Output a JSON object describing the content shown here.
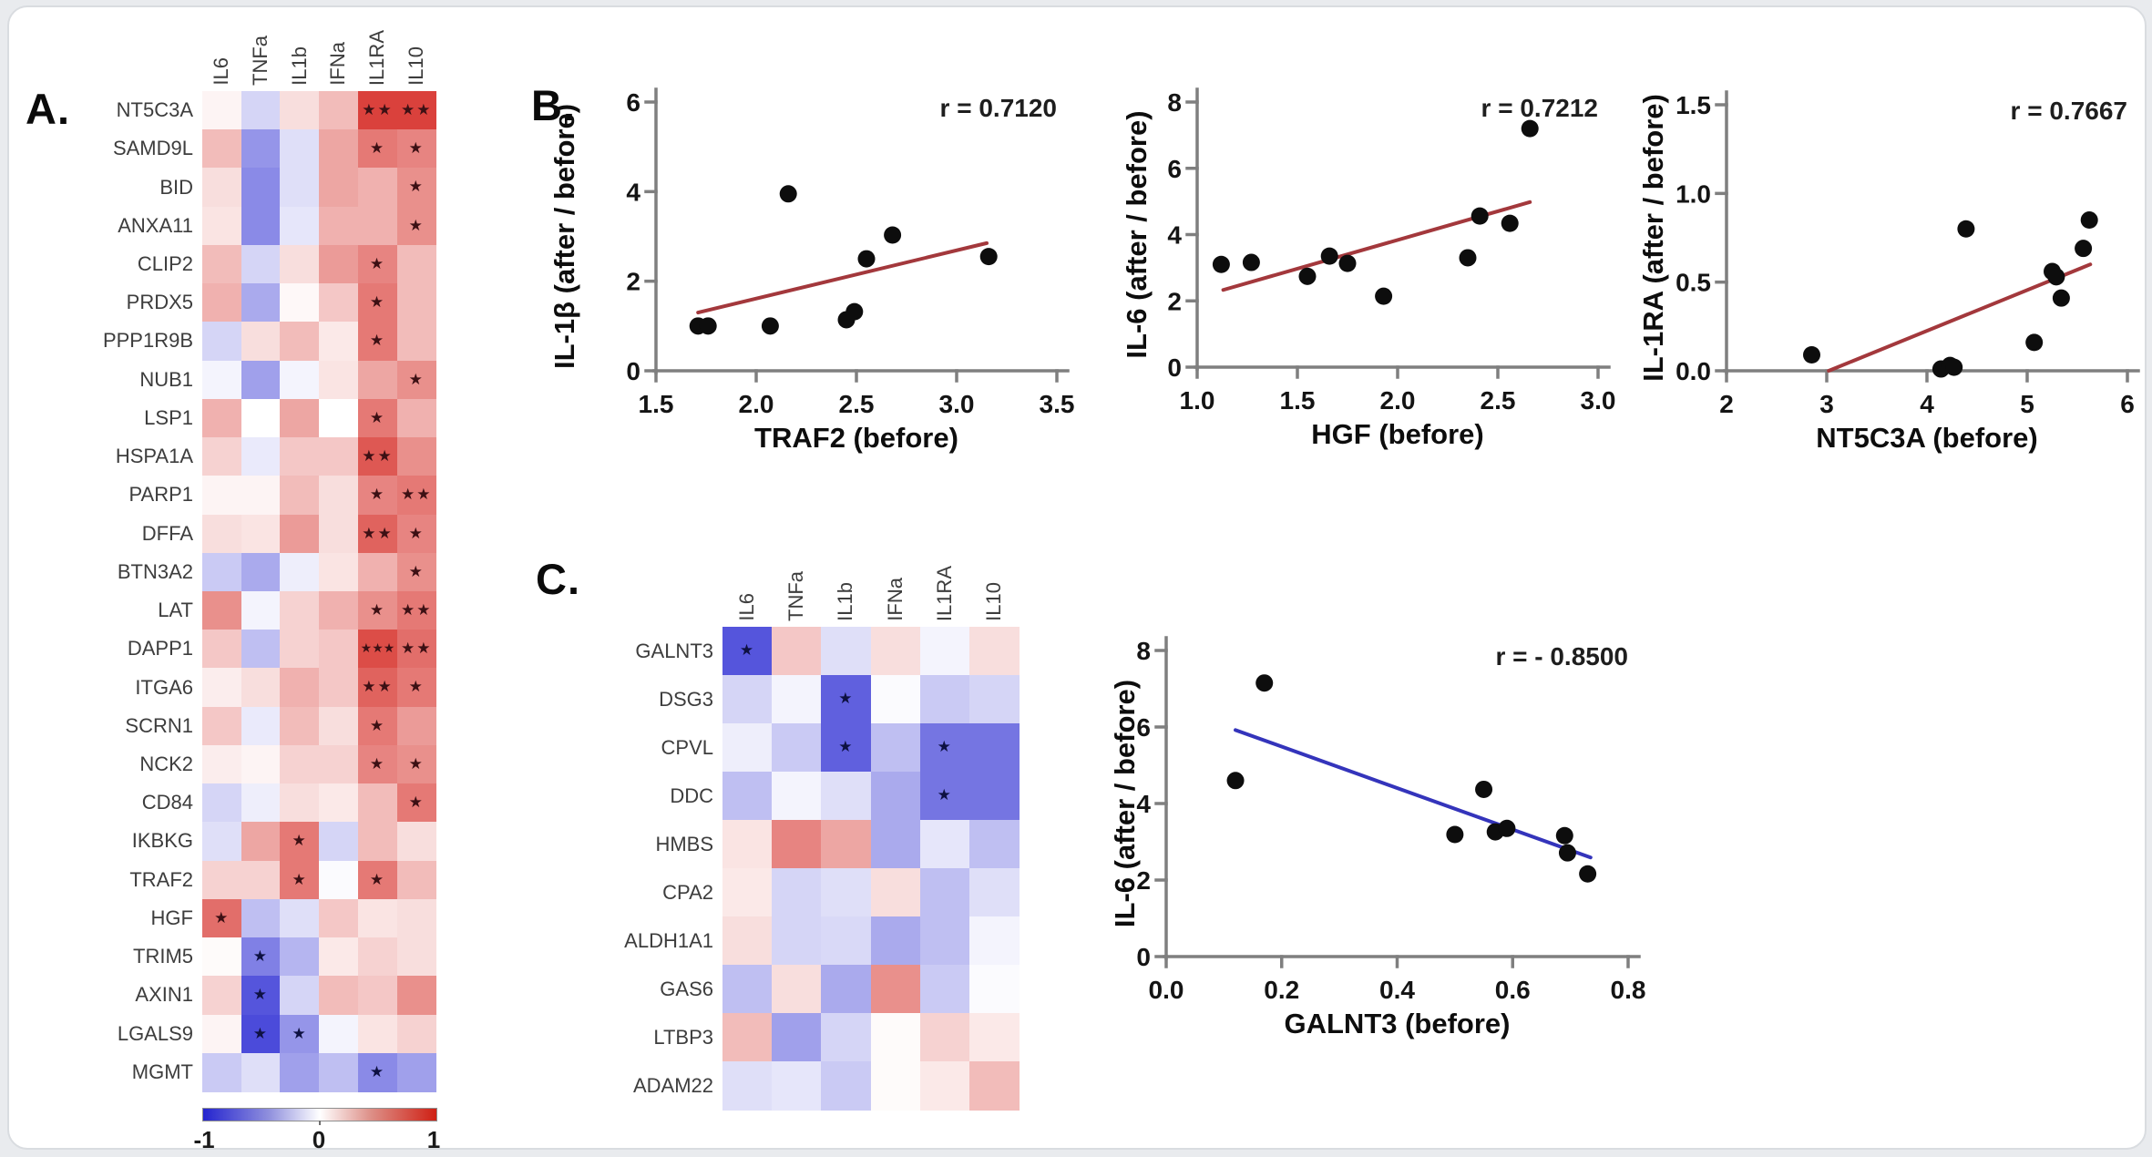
{
  "panel_labels": {
    "a": "A.",
    "b": "B.",
    "c": "C."
  },
  "colors": {
    "heatmap_negative": "#2b2bd3",
    "heatmap_zero": "#ffffff",
    "heatmap_positive": "#d32019",
    "point_color": "#0d0d0d",
    "trend_red": "#a3383c",
    "trend_blue": "#3434bb",
    "axis_gray": "#7f7f7f"
  },
  "chart_data": [
    {
      "id": "heatmap-a",
      "type": "heatmap",
      "legend_position": "bottom",
      "colorbar_ticks": [
        "-1",
        "0",
        "1"
      ],
      "value_range": [
        -1,
        1
      ],
      "columns": [
        "IL6",
        "TNFa",
        "IL1b",
        "IFNa",
        "IL1RA",
        "IL10"
      ],
      "rows": [
        "NT5C3A",
        "SAMD9L",
        "BID",
        "ANXA11",
        "CLIP2",
        "PRDX5",
        "PPP1R9B",
        "NUB1",
        "LSP1",
        "HSPA1A",
        "PARP1",
        "DFFA",
        "BTN3A2",
        "LAT",
        "DAPP1",
        "ITGA6",
        "SCRN1",
        "NCK2",
        "CD84",
        "IKBKG",
        "TRAF2",
        "HGF",
        "TRIM5",
        "AXIN1",
        "LGALS9",
        "MGMT"
      ],
      "values": [
        [
          0.05,
          -0.2,
          0.15,
          0.3,
          0.85,
          0.85
        ],
        [
          0.3,
          -0.5,
          -0.15,
          0.4,
          0.6,
          0.55
        ],
        [
          0.15,
          -0.55,
          -0.15,
          0.4,
          0.35,
          0.5
        ],
        [
          0.12,
          -0.55,
          -0.12,
          0.35,
          0.35,
          0.5
        ],
        [
          0.3,
          -0.2,
          0.15,
          0.45,
          0.55,
          0.3
        ],
        [
          0.35,
          -0.4,
          0.03,
          0.25,
          0.6,
          0.3
        ],
        [
          -0.2,
          0.15,
          0.3,
          0.1,
          0.6,
          0.3
        ],
        [
          -0.05,
          -0.45,
          -0.05,
          0.12,
          0.4,
          0.5
        ],
        [
          0.35,
          0,
          0.4,
          0,
          0.6,
          0.35
        ],
        [
          0.2,
          -0.1,
          0.25,
          0.25,
          0.75,
          0.5
        ],
        [
          0.05,
          0.05,
          0.3,
          0.15,
          0.55,
          0.6
        ],
        [
          0.15,
          0.12,
          0.45,
          0.15,
          0.7,
          0.55
        ],
        [
          -0.25,
          -0.4,
          -0.08,
          0.12,
          0.35,
          0.5
        ],
        [
          0.5,
          -0.05,
          0.2,
          0.35,
          0.5,
          0.6
        ],
        [
          0.25,
          -0.3,
          0.2,
          0.25,
          0.8,
          0.65
        ],
        [
          0.08,
          0.15,
          0.35,
          0.25,
          0.7,
          0.6
        ],
        [
          0.25,
          -0.1,
          0.3,
          0.15,
          0.6,
          0.45
        ],
        [
          0.08,
          0.05,
          0.2,
          0.2,
          0.55,
          0.5
        ],
        [
          -0.2,
          -0.08,
          0.15,
          0.1,
          0.3,
          0.6
        ],
        [
          -0.15,
          0.4,
          0.6,
          -0.2,
          0.3,
          0.15
        ],
        [
          0.2,
          0.2,
          0.6,
          -0.02,
          0.6,
          0.3
        ],
        [
          0.65,
          -0.3,
          -0.15,
          0.25,
          0.12,
          0.15
        ],
        [
          0.02,
          -0.6,
          -0.35,
          0.1,
          0.2,
          0.15
        ],
        [
          0.2,
          -0.8,
          -0.2,
          0.3,
          0.25,
          0.5
        ],
        [
          0.05,
          -0.85,
          -0.5,
          -0.05,
          0.12,
          0.2
        ],
        [
          -0.25,
          -0.15,
          -0.45,
          -0.3,
          -0.55,
          -0.45
        ]
      ],
      "stars": [
        [
          "",
          "",
          "",
          "",
          "**",
          "**"
        ],
        [
          "",
          "",
          "",
          "",
          "*",
          "*"
        ],
        [
          "",
          "",
          "",
          "",
          "",
          "*"
        ],
        [
          "",
          "",
          "",
          "",
          "",
          "*"
        ],
        [
          "",
          "",
          "",
          "",
          "*",
          ""
        ],
        [
          "",
          "",
          "",
          "",
          "*",
          ""
        ],
        [
          "",
          "",
          "",
          "",
          "*",
          ""
        ],
        [
          "",
          "",
          "",
          "",
          "",
          "*"
        ],
        [
          "",
          "",
          "",
          "",
          "*",
          ""
        ],
        [
          "",
          "",
          "",
          "",
          "**",
          ""
        ],
        [
          "",
          "",
          "",
          "",
          "*",
          "**"
        ],
        [
          "",
          "",
          "",
          "",
          "**",
          "*"
        ],
        [
          "",
          "",
          "",
          "",
          "",
          "*"
        ],
        [
          "",
          "",
          "",
          "",
          "*",
          "**"
        ],
        [
          "",
          "",
          "",
          "",
          "***",
          "**"
        ],
        [
          "",
          "",
          "",
          "",
          "**",
          "*"
        ],
        [
          "",
          "",
          "",
          "",
          "*",
          ""
        ],
        [
          "",
          "",
          "",
          "",
          "*",
          "*"
        ],
        [
          "",
          "",
          "",
          "",
          "",
          "*"
        ],
        [
          "",
          "",
          "*",
          "",
          "",
          ""
        ],
        [
          "",
          "",
          "*",
          "",
          "*",
          ""
        ],
        [
          "*",
          "",
          "",
          "",
          "",
          ""
        ],
        [
          "",
          "*",
          "",
          "",
          "",
          ""
        ],
        [
          "",
          "*",
          "",
          "",
          "",
          ""
        ],
        [
          "",
          "*",
          "*",
          "",
          "",
          ""
        ],
        [
          "",
          "",
          "",
          "",
          "*",
          ""
        ]
      ]
    },
    {
      "id": "scatter-traf2",
      "type": "scatter",
      "r_label": "r = 0.7120",
      "xlabel": "TRAF2 (before)",
      "ylabel": "IL-1β (after / before)",
      "xlim": [
        1.5,
        3.5
      ],
      "ylim": [
        0,
        6
      ],
      "xticks": [
        "1.5",
        "2.0",
        "2.5",
        "3.0",
        "3.5"
      ],
      "yticks": [
        "0",
        "2",
        "4",
        "6"
      ],
      "points": [
        [
          1.71,
          1.0
        ],
        [
          1.76,
          1.0
        ],
        [
          2.07,
          1.0
        ],
        [
          2.16,
          3.95
        ],
        [
          2.45,
          1.14
        ],
        [
          2.49,
          1.32
        ],
        [
          2.55,
          2.5
        ],
        [
          2.68,
          3.03
        ],
        [
          3.16,
          2.55
        ]
      ],
      "trend_line": {
        "x1": 1.71,
        "y1": 1.3,
        "x2": 3.15,
        "y2": 2.85,
        "color": "#a3383c"
      }
    },
    {
      "id": "scatter-hgf",
      "type": "scatter",
      "r_label": "r = 0.7212",
      "xlabel": "HGF (before)",
      "ylabel": "IL-6 (after / before)",
      "xlim": [
        1.0,
        3.0
      ],
      "ylim": [
        0,
        8
      ],
      "xticks": [
        "1.0",
        "1.5",
        "2.0",
        "2.5",
        "3.0"
      ],
      "yticks": [
        "0",
        "2",
        "4",
        "6",
        "8"
      ],
      "points": [
        [
          1.12,
          3.1
        ],
        [
          1.27,
          3.16
        ],
        [
          1.55,
          2.74
        ],
        [
          1.66,
          3.35
        ],
        [
          1.75,
          3.13
        ],
        [
          1.93,
          2.14
        ],
        [
          2.35,
          3.3
        ],
        [
          2.41,
          4.56
        ],
        [
          2.56,
          4.34
        ],
        [
          2.66,
          7.2
        ]
      ],
      "trend_line": {
        "x1": 1.13,
        "y1": 2.33,
        "x2": 2.66,
        "y2": 4.98,
        "color": "#a3383c"
      }
    },
    {
      "id": "scatter-nt5c3a",
      "type": "scatter",
      "r_label": "r = 0.7667",
      "xlabel": "NT5C3A (before)",
      "ylabel": "IL-1RA (after / before)",
      "xlim": [
        2,
        6
      ],
      "ylim": [
        0,
        1.5
      ],
      "xticks": [
        "2",
        "3",
        "4",
        "5",
        "6"
      ],
      "yticks": [
        "0.0",
        "0.5",
        "1.0",
        "1.5"
      ],
      "points": [
        [
          2.85,
          0.09
        ],
        [
          4.14,
          0.01
        ],
        [
          4.23,
          0.03
        ],
        [
          4.27,
          0.02
        ],
        [
          4.39,
          0.8
        ],
        [
          5.07,
          0.16
        ],
        [
          5.25,
          0.56
        ],
        [
          5.29,
          0.53
        ],
        [
          5.34,
          0.41
        ],
        [
          5.56,
          0.69
        ],
        [
          5.62,
          0.85
        ]
      ],
      "trend_line": {
        "x1": 3.02,
        "y1": 0.0,
        "x2": 5.63,
        "y2": 0.6,
        "color": "#a3383c"
      }
    },
    {
      "id": "heatmap-c",
      "type": "heatmap",
      "value_range": [
        -1,
        1
      ],
      "columns": [
        "IL6",
        "TNFa",
        "IL1b",
        "IFNa",
        "IL1RA",
        "IL10"
      ],
      "rows": [
        "GALNT3",
        "DSG3",
        "CPVL",
        "DDC",
        "HMBS",
        "CPA2",
        "ALDH1A1",
        "GAS6",
        "LTBP3",
        "ADAM22"
      ],
      "values": [
        [
          -0.8,
          0.25,
          -0.15,
          0.15,
          -0.05,
          0.15
        ],
        [
          -0.2,
          -0.05,
          -0.75,
          -0.02,
          -0.25,
          -0.2
        ],
        [
          -0.08,
          -0.25,
          -0.75,
          -0.3,
          -0.65,
          -0.65
        ],
        [
          -0.3,
          -0.05,
          -0.15,
          -0.4,
          -0.65,
          -0.65
        ],
        [
          0.12,
          0.55,
          0.4,
          -0.4,
          -0.12,
          -0.3
        ],
        [
          0.1,
          -0.2,
          -0.15,
          0.15,
          -0.3,
          -0.15
        ],
        [
          0.15,
          -0.2,
          -0.18,
          -0.4,
          -0.3,
          -0.05
        ],
        [
          -0.3,
          0.15,
          -0.4,
          0.5,
          -0.25,
          -0.02
        ],
        [
          0.3,
          -0.45,
          -0.2,
          0.02,
          0.2,
          0.1
        ],
        [
          -0.15,
          -0.12,
          -0.25,
          0.02,
          0.1,
          0.3
        ]
      ],
      "stars": [
        [
          "*",
          "",
          "",
          "",
          "",
          ""
        ],
        [
          "",
          "",
          "*",
          "",
          "",
          ""
        ],
        [
          "",
          "",
          "*",
          "",
          "*",
          ""
        ],
        [
          "",
          "",
          "",
          "",
          "*",
          ""
        ],
        [
          "",
          "",
          "",
          "",
          "",
          ""
        ],
        [
          "",
          "",
          "",
          "",
          "",
          ""
        ],
        [
          "",
          "",
          "",
          "",
          "",
          ""
        ],
        [
          "",
          "",
          "",
          "",
          "",
          ""
        ],
        [
          "",
          "",
          "",
          "",
          "",
          ""
        ],
        [
          "",
          "",
          "",
          "",
          "",
          ""
        ]
      ]
    },
    {
      "id": "scatter-galnt3",
      "type": "scatter",
      "r_label": "r = - 0.8500",
      "xlabel": "GALNT3 (before)",
      "ylabel": "IL-6 (after / before)",
      "xlim": [
        0.0,
        0.8
      ],
      "ylim": [
        0,
        8
      ],
      "xticks": [
        "0.0",
        "0.2",
        "0.4",
        "0.6",
        "0.8"
      ],
      "yticks": [
        "0",
        "2",
        "4",
        "6",
        "8"
      ],
      "points": [
        [
          0.12,
          4.6
        ],
        [
          0.17,
          7.15
        ],
        [
          0.5,
          3.19
        ],
        [
          0.55,
          4.37
        ],
        [
          0.57,
          3.26
        ],
        [
          0.59,
          3.35
        ],
        [
          0.69,
          3.16
        ],
        [
          0.695,
          2.71
        ],
        [
          0.73,
          2.16
        ]
      ],
      "trend_line": {
        "x1": 0.12,
        "y1": 5.92,
        "x2": 0.735,
        "y2": 2.59,
        "color": "#3434bb"
      }
    }
  ]
}
